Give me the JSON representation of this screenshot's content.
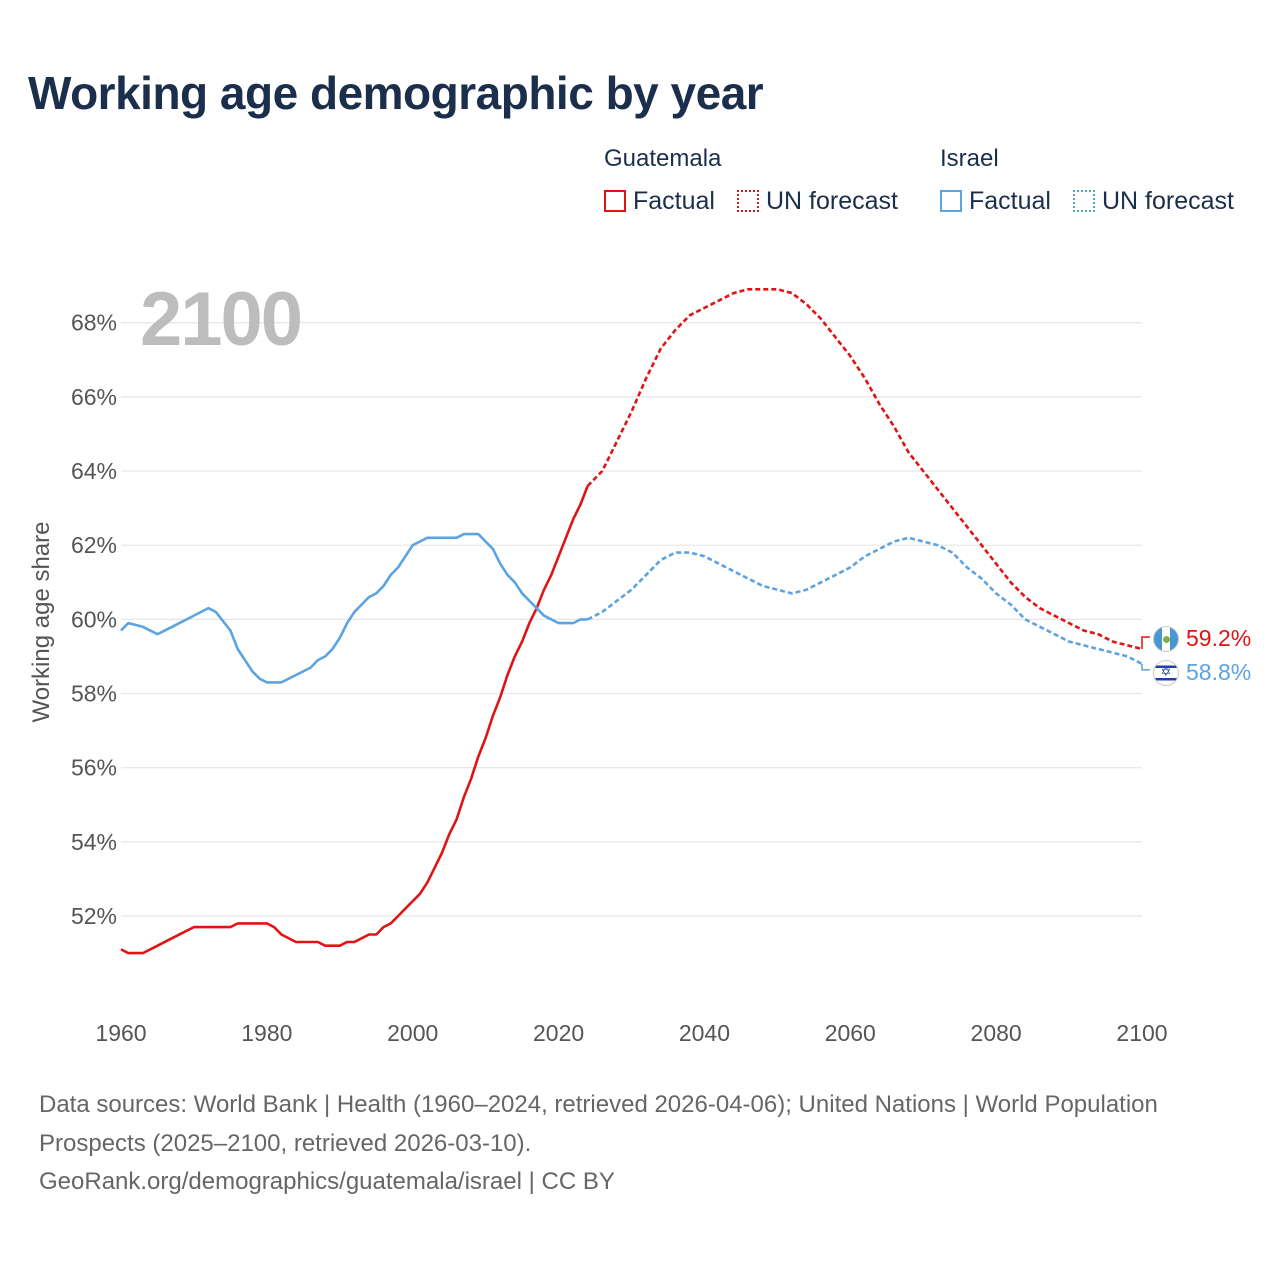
{
  "title": "Working age demographic by year",
  "legend": {
    "groups": [
      {
        "name": "Guatemala",
        "factual_label": "Factual",
        "forecast_label": "UN forecast"
      },
      {
        "name": "Israel",
        "factual_label": "Factual",
        "forecast_label": "UN forecast"
      }
    ]
  },
  "year_display": "2100",
  "colors": {
    "guatemala": "#e01414",
    "israel": "#5ba3e3",
    "grid": "#e6e6e6",
    "axis_text": "#555555"
  },
  "chart_data": {
    "type": "line",
    "title": "Working age demographic by year",
    "xlabel": "",
    "ylabel": "Working age share",
    "xlim": [
      1960,
      2100
    ],
    "ylim": [
      50,
      69.5
    ],
    "x_ticks": [
      1960,
      1980,
      2000,
      2020,
      2040,
      2060,
      2080,
      2100
    ],
    "x_tick_labels": [
      "1960",
      "1980",
      "2000",
      "2020",
      "2040",
      "2060",
      "2080",
      "2100"
    ],
    "y_ticks": [
      52,
      54,
      56,
      58,
      60,
      62,
      64,
      66,
      68
    ],
    "y_tick_labels": [
      "52%",
      "54%",
      "56%",
      "58%",
      "60%",
      "62%",
      "64%",
      "66%",
      "68%"
    ],
    "grid": true,
    "factual_end_year": 2024,
    "series": [
      {
        "name": "Guatemala",
        "end_label": "59.2%",
        "points": [
          [
            1960,
            51.1
          ],
          [
            1961,
            51.0
          ],
          [
            1963,
            51.0
          ],
          [
            1965,
            51.2
          ],
          [
            1967,
            51.4
          ],
          [
            1969,
            51.6
          ],
          [
            1970,
            51.7
          ],
          [
            1972,
            51.7
          ],
          [
            1975,
            51.7
          ],
          [
            1976,
            51.8
          ],
          [
            1978,
            51.8
          ],
          [
            1980,
            51.8
          ],
          [
            1981,
            51.7
          ],
          [
            1982,
            51.5
          ],
          [
            1984,
            51.3
          ],
          [
            1986,
            51.3
          ],
          [
            1987,
            51.3
          ],
          [
            1988,
            51.2
          ],
          [
            1990,
            51.2
          ],
          [
            1991,
            51.3
          ],
          [
            1992,
            51.3
          ],
          [
            1994,
            51.5
          ],
          [
            1995,
            51.5
          ],
          [
            1996,
            51.7
          ],
          [
            1997,
            51.8
          ],
          [
            1998,
            52.0
          ],
          [
            1999,
            52.2
          ],
          [
            2000,
            52.4
          ],
          [
            2001,
            52.6
          ],
          [
            2002,
            52.9
          ],
          [
            2003,
            53.3
          ],
          [
            2004,
            53.7
          ],
          [
            2005,
            54.2
          ],
          [
            2006,
            54.6
          ],
          [
            2007,
            55.2
          ],
          [
            2008,
            55.7
          ],
          [
            2009,
            56.3
          ],
          [
            2010,
            56.8
          ],
          [
            2011,
            57.4
          ],
          [
            2012,
            57.9
          ],
          [
            2013,
            58.5
          ],
          [
            2014,
            59.0
          ],
          [
            2015,
            59.4
          ],
          [
            2016,
            59.9
          ],
          [
            2017,
            60.3
          ],
          [
            2018,
            60.8
          ],
          [
            2019,
            61.2
          ],
          [
            2020,
            61.7
          ],
          [
            2021,
            62.2
          ],
          [
            2022,
            62.7
          ],
          [
            2023,
            63.1
          ],
          [
            2024,
            63.6
          ],
          [
            2026,
            64.0
          ],
          [
            2028,
            64.8
          ],
          [
            2030,
            65.6
          ],
          [
            2032,
            66.5
          ],
          [
            2034,
            67.3
          ],
          [
            2036,
            67.8
          ],
          [
            2038,
            68.2
          ],
          [
            2040,
            68.4
          ],
          [
            2042,
            68.6
          ],
          [
            2044,
            68.8
          ],
          [
            2046,
            68.9
          ],
          [
            2048,
            68.9
          ],
          [
            2050,
            68.9
          ],
          [
            2052,
            68.8
          ],
          [
            2054,
            68.5
          ],
          [
            2056,
            68.1
          ],
          [
            2058,
            67.6
          ],
          [
            2060,
            67.1
          ],
          [
            2062,
            66.5
          ],
          [
            2064,
            65.8
          ],
          [
            2066,
            65.2
          ],
          [
            2068,
            64.5
          ],
          [
            2070,
            64.0
          ],
          [
            2072,
            63.5
          ],
          [
            2074,
            63.0
          ],
          [
            2076,
            62.5
          ],
          [
            2078,
            62.0
          ],
          [
            2080,
            61.5
          ],
          [
            2082,
            61.0
          ],
          [
            2084,
            60.6
          ],
          [
            2086,
            60.3
          ],
          [
            2088,
            60.1
          ],
          [
            2090,
            59.9
          ],
          [
            2092,
            59.7
          ],
          [
            2094,
            59.6
          ],
          [
            2096,
            59.4
          ],
          [
            2098,
            59.3
          ],
          [
            2100,
            59.2
          ]
        ]
      },
      {
        "name": "Israel",
        "end_label": "58.8%",
        "points": [
          [
            1960,
            59.7
          ],
          [
            1961,
            59.9
          ],
          [
            1963,
            59.8
          ],
          [
            1965,
            59.6
          ],
          [
            1967,
            59.8
          ],
          [
            1969,
            60.0
          ],
          [
            1971,
            60.2
          ],
          [
            1972,
            60.3
          ],
          [
            1973,
            60.2
          ],
          [
            1975,
            59.7
          ],
          [
            1976,
            59.2
          ],
          [
            1978,
            58.6
          ],
          [
            1979,
            58.4
          ],
          [
            1980,
            58.3
          ],
          [
            1981,
            58.3
          ],
          [
            1982,
            58.3
          ],
          [
            1984,
            58.5
          ],
          [
            1986,
            58.7
          ],
          [
            1987,
            58.9
          ],
          [
            1988,
            59.0
          ],
          [
            1989,
            59.2
          ],
          [
            1990,
            59.5
          ],
          [
            1991,
            59.9
          ],
          [
            1992,
            60.2
          ],
          [
            1993,
            60.4
          ],
          [
            1994,
            60.6
          ],
          [
            1995,
            60.7
          ],
          [
            1996,
            60.9
          ],
          [
            1997,
            61.2
          ],
          [
            1998,
            61.4
          ],
          [
            1999,
            61.7
          ],
          [
            2000,
            62.0
          ],
          [
            2001,
            62.1
          ],
          [
            2002,
            62.2
          ],
          [
            2004,
            62.2
          ],
          [
            2006,
            62.2
          ],
          [
            2007,
            62.3
          ],
          [
            2009,
            62.3
          ],
          [
            2010,
            62.1
          ],
          [
            2011,
            61.9
          ],
          [
            2012,
            61.5
          ],
          [
            2013,
            61.2
          ],
          [
            2014,
            61.0
          ],
          [
            2015,
            60.7
          ],
          [
            2016,
            60.5
          ],
          [
            2017,
            60.3
          ],
          [
            2018,
            60.1
          ],
          [
            2019,
            60.0
          ],
          [
            2020,
            59.9
          ],
          [
            2021,
            59.9
          ],
          [
            2022,
            59.9
          ],
          [
            2023,
            60.0
          ],
          [
            2024,
            60.0
          ],
          [
            2026,
            60.2
          ],
          [
            2028,
            60.5
          ],
          [
            2030,
            60.8
          ],
          [
            2032,
            61.2
          ],
          [
            2034,
            61.6
          ],
          [
            2036,
            61.8
          ],
          [
            2038,
            61.8
          ],
          [
            2040,
            61.7
          ],
          [
            2042,
            61.5
          ],
          [
            2044,
            61.3
          ],
          [
            2046,
            61.1
          ],
          [
            2048,
            60.9
          ],
          [
            2050,
            60.8
          ],
          [
            2052,
            60.7
          ],
          [
            2054,
            60.8
          ],
          [
            2056,
            61.0
          ],
          [
            2058,
            61.2
          ],
          [
            2060,
            61.4
          ],
          [
            2062,
            61.7
          ],
          [
            2064,
            61.9
          ],
          [
            2066,
            62.1
          ],
          [
            2068,
            62.2
          ],
          [
            2070,
            62.1
          ],
          [
            2072,
            62.0
          ],
          [
            2074,
            61.8
          ],
          [
            2076,
            61.4
          ],
          [
            2078,
            61.1
          ],
          [
            2080,
            60.7
          ],
          [
            2082,
            60.4
          ],
          [
            2084,
            60.0
          ],
          [
            2086,
            59.8
          ],
          [
            2088,
            59.6
          ],
          [
            2090,
            59.4
          ],
          [
            2092,
            59.3
          ],
          [
            2094,
            59.2
          ],
          [
            2096,
            59.1
          ],
          [
            2098,
            59.0
          ],
          [
            2100,
            58.8
          ]
        ]
      }
    ]
  },
  "footer": {
    "sources": "Data sources: World Bank | Health (1960–2024, retrieved 2026-04-06); United Nations | World Population Prospects (2025–2100, retrieved 2026-03-10).",
    "credit": "GeoRank.org/demographics/guatemala/israel | CC BY"
  }
}
